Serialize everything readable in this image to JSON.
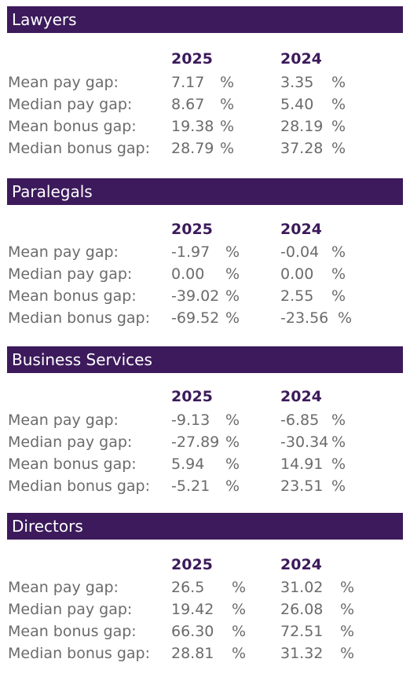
{
  "sections": [
    {
      "title": "Lawyers",
      "year_a": "2025",
      "year_b": "2024",
      "rows": [
        {
          "label": "Mean pay gap:",
          "a": "7.17",
          "b": "3.35"
        },
        {
          "label": "Median pay gap:",
          "a": "8.67",
          "b": "5.40"
        },
        {
          "label": "Mean bonus gap:",
          "a": "19.38",
          "b": "28.19"
        },
        {
          "label": "Median bonus gap:",
          "a": "28.79",
          "b": "37.28"
        }
      ]
    },
    {
      "title": "Paralegals",
      "year_a": "2025",
      "year_b": "2024",
      "rows": [
        {
          "label": "Mean pay gap:",
          "a": "-1.97",
          "b": "-0.04"
        },
        {
          "label": "Median pay gap:",
          "a": "0.00",
          "b": "0.00"
        },
        {
          "label": "Mean bonus gap:",
          "a": "-39.02",
          "b": "2.55"
        },
        {
          "label": "Median bonus gap:",
          "a": "-69.52",
          "b": "-23.56"
        }
      ]
    },
    {
      "title": "Business Services",
      "year_a": "2025",
      "year_b": "2024",
      "rows": [
        {
          "label": "Mean pay gap:",
          "a": "-9.13",
          "b": "-6.85"
        },
        {
          "label": "Median pay gap:",
          "a": "-27.89",
          "b": "-30.34"
        },
        {
          "label": "Mean bonus gap:",
          "a": "5.94",
          "b": "14.91"
        },
        {
          "label": "Median bonus gap:",
          "a": "-5.21",
          "b": "23.51"
        }
      ]
    },
    {
      "title": "Directors",
      "year_a": "2025",
      "year_b": "2024",
      "rows": [
        {
          "label": "Mean pay gap:",
          "a": "26.5",
          "b": "31.02"
        },
        {
          "label": "Median pay gap:",
          "a": "19.42",
          "b": "26.08"
        },
        {
          "label": "Mean bonus gap:",
          "a": "66.30",
          "b": "72.51"
        },
        {
          "label": "Median bonus gap:",
          "a": "28.81",
          "b": "31.32"
        }
      ]
    }
  ],
  "percent_sign": "%"
}
